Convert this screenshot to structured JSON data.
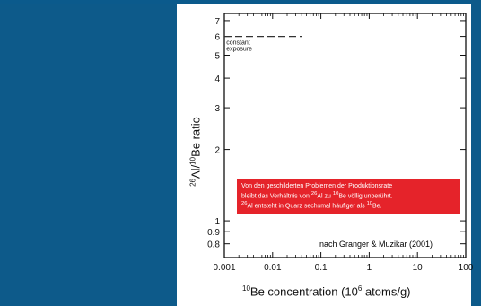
{
  "colors": {
    "panel": "#0d5a8a",
    "note_bg": "#e5232a"
  },
  "chart_data": {
    "type": "line",
    "xscale": "log",
    "yscale": "log",
    "xlim": [
      0.001,
      100
    ],
    "ylim": [
      0.7,
      7.5
    ],
    "x_ticks": [
      "0.001",
      "0.01",
      "0.1",
      "1",
      "10",
      "100"
    ],
    "x_tick_values": [
      0.001,
      0.01,
      0.1,
      1,
      10,
      100
    ],
    "y_ticks": [
      "0.8",
      "0.9",
      "1",
      "2",
      "3",
      "4",
      "5",
      "6",
      "7"
    ],
    "y_tick_values": [
      0.8,
      0.9,
      1,
      2,
      3,
      4,
      5,
      6,
      7
    ],
    "xlabel": {
      "pre": "10",
      "sup": "Be concentration (10",
      "sup2": "6",
      "post": " atoms/g)"
    },
    "ylabel": {
      "sup1": "26",
      "mid": "Al/",
      "sup2": "10",
      "post": "Be ratio"
    },
    "series": [
      {
        "name": "constant exposure",
        "style": "dashed",
        "x": [
          0.001,
          0.04
        ],
        "y": [
          6.0,
          6.0
        ]
      }
    ],
    "series_label_lines": [
      "constant",
      "exposure"
    ]
  },
  "note": {
    "line1": "Von den geschilderten Problemen der Produktionsrate",
    "line2_a": "bleibt das Verhältnis von ",
    "line2_sup1": "26",
    "line2_b": "Al zu ",
    "line2_sup2": "10",
    "line2_c": "Be völlig unberührt.",
    "line3_sup1": "26",
    "line3_a": "Al entsteht in Quarz sechsmal häufiger als ",
    "line3_sup2": "10",
    "line3_b": "Be."
  },
  "citation": "nach Granger & Muzikar (2001)"
}
